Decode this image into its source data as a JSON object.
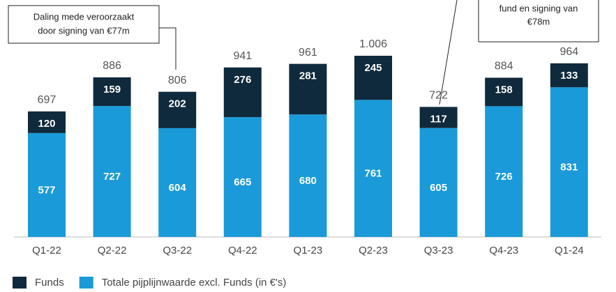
{
  "chart_data": {
    "type": "stacked_bar",
    "categories": [
      "Q1-22",
      "Q2-22",
      "Q3-22",
      "Q4-22",
      "Q1-23",
      "Q2-23",
      "Q3-23",
      "Q4-23",
      "Q1-24"
    ],
    "series": [
      {
        "name": "Funds",
        "color": "#0f2a3c",
        "values": [
          120,
          159,
          202,
          276,
          281,
          245,
          117,
          158,
          133
        ]
      },
      {
        "name": "Totale pijplijnwaarde excl. Funds (in €'s)",
        "color": "#1a9ad8",
        "values": [
          577,
          727,
          604,
          665,
          680,
          761,
          605,
          726,
          831
        ]
      }
    ],
    "totals": {
      "values": [
        697,
        886,
        806,
        941,
        961,
        1006,
        722,
        884,
        964
      ],
      "value_labels": [
        "697",
        "886",
        "806",
        "941",
        "961",
        "1.006",
        "722",
        "884",
        "964"
      ]
    },
    "annotations": [
      {
        "lines": [
          "Daling mede veroorzaakt",
          "door signing van €77m"
        ]
      },
      {
        "lines": [
          "fund en signing van",
          "€78m"
        ]
      }
    ]
  }
}
